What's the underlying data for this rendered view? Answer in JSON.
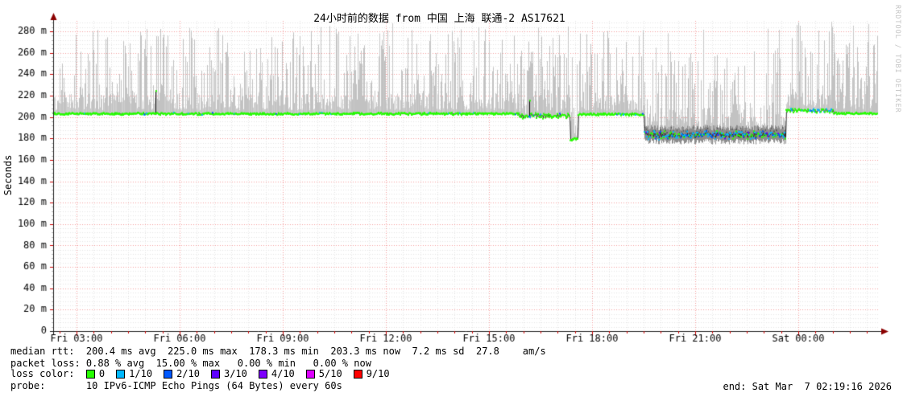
{
  "title": "24小时前的数据 from 中国 上海 联通-2 AS17621",
  "y_axis_label": "Seconds",
  "side_label": "RRDTOOL / TOBI OETIKER",
  "legend": {
    "median_rtt_line": "median rtt:  200.4 ms avg  225.0 ms max  178.3 ms min  203.3 ms now  7.2 ms sd  27.8    am/s",
    "packet_loss_line": "packet loss: 0.88 % avg  15.00 % max   0.00 % min   0.00 % now",
    "loss_color_label_padded": "loss color:  ",
    "loss_items": [
      {
        "label": "0",
        "color": "#26ff00"
      },
      {
        "label": "1/10",
        "color": "#00b8ff"
      },
      {
        "label": "2/10",
        "color": "#0059ff"
      },
      {
        "label": "3/10",
        "color": "#5e00ff"
      },
      {
        "label": "4/10",
        "color": "#7e00ff"
      },
      {
        "label": "5/10",
        "color": "#dd00ff"
      },
      {
        "label": "9/10",
        "color": "#ff0000"
      }
    ],
    "probe_line": "probe:       10 IPv6-ICMP Echo Pings (64 Bytes) every 60s",
    "end_line": "end: Sat Mar  7 02:19:16 2026"
  },
  "chart_data": {
    "type": "line",
    "title": "24小时前的数据 from 中国 上海 联通-2 AS17621",
    "ylabel": "Seconds",
    "ylim_ms": [
      0,
      290
    ],
    "y_tick_step_ms": 20,
    "y_tick_labels": [
      "0",
      "20 m",
      "40 m",
      "60 m",
      "80 m",
      "100 m",
      "120 m",
      "140 m",
      "160 m",
      "180 m",
      "200 m",
      "220 m",
      "240 m",
      "260 m",
      "280 m"
    ],
    "x_ticks": [
      "Fri 03:00",
      "Fri 06:00",
      "Fri 09:00",
      "Fri 12:00",
      "Fri 15:00",
      "Fri 18:00",
      "Fri 21:00",
      "Sat 00:00"
    ],
    "x_span_hours": 24,
    "x_first_major_offset_h": 0.679,
    "x_first_minor_offset_h": 0.179,
    "end_time": "Sat Mar 7 02:19:16 2026",
    "grid": {
      "major_color": "#f59f9f",
      "minor_color": "#e4e4e4",
      "tick_color": "#cc0000",
      "axis_color": "#1a1a1a",
      "arrow_color": "#8b0000"
    },
    "stats": {
      "median_avg_ms": 200.4,
      "median_max_ms": 225.0,
      "median_min_ms": 178.3,
      "median_now_ms": 203.3,
      "sd_ms": 7.2,
      "am_per_s": 27.8,
      "loss_avg_pct": 0.88,
      "loss_max_pct": 15.0,
      "loss_min_pct": 0.0,
      "loss_now_pct": 0.0
    },
    "loss_colors": {
      "0": "#26ff00",
      "1/10": "#00b8ff",
      "2/10": "#0059ff",
      "3/10": "#5e00ff",
      "4/10": "#7e00ff",
      "5/10": "#dd00ff",
      "9/10": "#ff0000"
    },
    "probe": "10 IPv6-ICMP Echo Pings (64 Bytes) every 60s",
    "median_segments": [
      {
        "start_h": 0.0,
        "end_h": 13.55,
        "median_ms": 203.0,
        "jitter_ms": 0.7,
        "loss_mix": [
          [
            "0",
            0.97
          ],
          [
            "1/10",
            0.02
          ],
          [
            "2/10",
            0.01
          ]
        ]
      },
      {
        "start_h": 13.55,
        "end_h": 15.03,
        "median_ms": 201.0,
        "jitter_ms": 2.2,
        "loss_mix": [
          [
            "0",
            0.88
          ],
          [
            "1/10",
            0.08
          ],
          [
            "2/10",
            0.04
          ]
        ]
      },
      {
        "start_h": 15.03,
        "end_h": 15.28,
        "median_ms": 179.0,
        "jitter_ms": 1.0,
        "loss_mix": [
          [
            "0",
            1.0
          ]
        ]
      },
      {
        "start_h": 15.28,
        "end_h": 17.18,
        "median_ms": 202.5,
        "jitter_ms": 1.0,
        "loss_mix": [
          [
            "0",
            0.92
          ],
          [
            "1/10",
            0.06
          ],
          [
            "2/10",
            0.02
          ]
        ]
      },
      {
        "start_h": 17.18,
        "end_h": 21.32,
        "median_ms": 183.0,
        "jitter_ms": 2.6,
        "dark": true,
        "below_ms": 5,
        "loss_mix": [
          [
            "0",
            0.33
          ],
          [
            "1/10",
            0.4
          ],
          [
            "2/10",
            0.22
          ],
          [
            "3/10",
            0.05
          ]
        ]
      },
      {
        "start_h": 21.32,
        "end_h": 22.7,
        "median_ms": 206.0,
        "jitter_ms": 1.8,
        "loss_mix": [
          [
            "0",
            0.6
          ],
          [
            "1/10",
            0.35
          ],
          [
            "2/10",
            0.05
          ]
        ]
      },
      {
        "start_h": 22.7,
        "end_h": 24.0,
        "median_ms": 203.3,
        "jitter_ms": 0.5,
        "loss_mix": [
          [
            "0",
            0.98
          ],
          [
            "1/10",
            0.02
          ]
        ]
      }
    ],
    "median_spikes": [
      {
        "t_h": 2.97,
        "to_ms": 225
      },
      {
        "t_h": 13.85,
        "to_ms": 216
      }
    ],
    "smoke": {
      "max_ms": 289,
      "tall_spike_prob": 0.045,
      "seed": 20260307
    }
  }
}
